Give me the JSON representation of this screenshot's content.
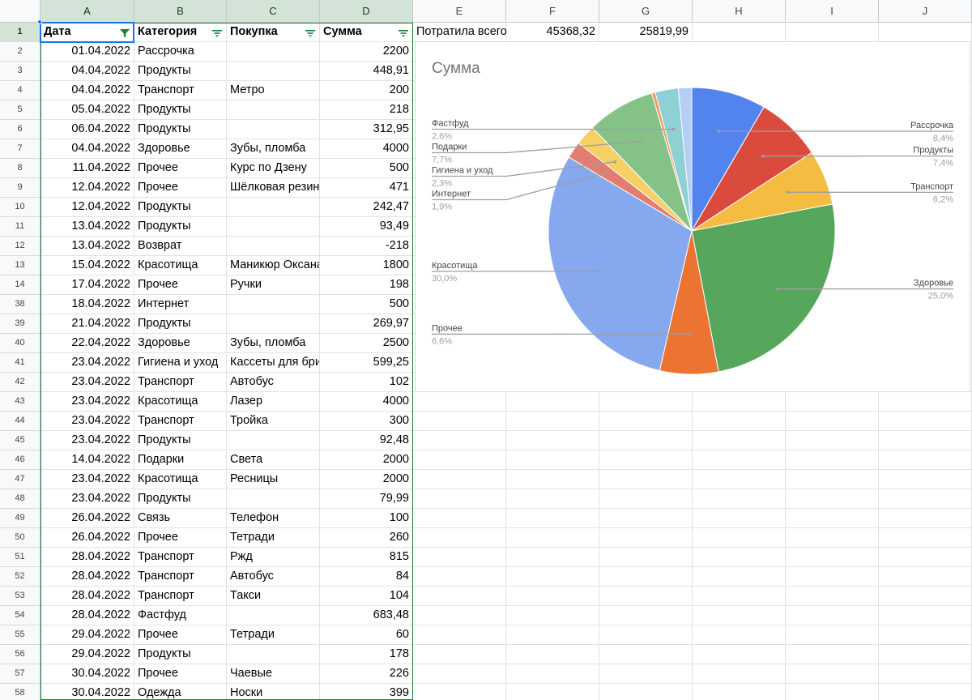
{
  "sheet": {
    "columns": [
      "A",
      "B",
      "C",
      "D",
      "E",
      "F",
      "G",
      "H",
      "I",
      "J"
    ],
    "header_row": {
      "num": "1",
      "date": "Дата",
      "category": "Категория",
      "purchase": "Покупка",
      "amount": "Сумма"
    },
    "summary": {
      "label": "Потратила всего",
      "value1": "45368,32",
      "value2": "25819,99"
    },
    "rows": [
      {
        "num": "2",
        "date": "01.04.2022",
        "category": "Рассрочка",
        "purchase": "",
        "amount": "2200"
      },
      {
        "num": "3",
        "date": "04.04.2022",
        "category": "Продукты",
        "purchase": "",
        "amount": "448,91"
      },
      {
        "num": "4",
        "date": "04.04.2022",
        "category": "Транспорт",
        "purchase": "Метро",
        "amount": "200"
      },
      {
        "num": "5",
        "date": "05.04.2022",
        "category": "Продукты",
        "purchase": "",
        "amount": "218"
      },
      {
        "num": "6",
        "date": "06.04.2022",
        "category": "Продукты",
        "purchase": "",
        "amount": "312,95"
      },
      {
        "num": "7",
        "date": "04.04.2022",
        "category": "Здоровье",
        "purchase": "Зубы, пломба",
        "amount": "4000"
      },
      {
        "num": "8",
        "date": "11.04.2022",
        "category": "Прочее",
        "purchase": "Курс по Дзену",
        "amount": "500"
      },
      {
        "num": "9",
        "date": "12.04.2022",
        "category": "Прочее",
        "purchase": "Шёлковая резин",
        "amount": "471"
      },
      {
        "num": "10",
        "date": "12.04.2022",
        "category": "Продукты",
        "purchase": "",
        "amount": "242,47"
      },
      {
        "num": "11",
        "date": "13.04.2022",
        "category": "Продукты",
        "purchase": "",
        "amount": "93,49"
      },
      {
        "num": "12",
        "date": "13.04.2022",
        "category": "Возврат",
        "purchase": "",
        "amount": "-218"
      },
      {
        "num": "13",
        "date": "15.04.2022",
        "category": "Красотища",
        "purchase": "Маникюр Оксана",
        "amount": "1800"
      },
      {
        "num": "14",
        "date": "17.04.2022",
        "category": "Прочее",
        "purchase": "Ручки",
        "amount": "198"
      },
      {
        "num": "38",
        "date": "18.04.2022",
        "category": "Интернет",
        "purchase": "",
        "amount": "500"
      },
      {
        "num": "39",
        "date": "21.04.2022",
        "category": "Продукты",
        "purchase": "",
        "amount": "269,97"
      },
      {
        "num": "40",
        "date": "22.04.2022",
        "category": "Здоровье",
        "purchase": "Зубы, пломба",
        "amount": "2500"
      },
      {
        "num": "41",
        "date": "23.04.2022",
        "category": "Гигиена и уход",
        "purchase": "Кассеты для бри",
        "amount": "599,25"
      },
      {
        "num": "42",
        "date": "23.04.2022",
        "category": "Транспорт",
        "purchase": "Автобус",
        "amount": "102"
      },
      {
        "num": "43",
        "date": "23.04.2022",
        "category": "Красотища",
        "purchase": "Лазер",
        "amount": "4000"
      },
      {
        "num": "44",
        "date": "23.04.2022",
        "category": "Транспорт",
        "purchase": "Тройка",
        "amount": "300"
      },
      {
        "num": "45",
        "date": "23.04.2022",
        "category": "Продукты",
        "purchase": "",
        "amount": "92,48"
      },
      {
        "num": "46",
        "date": "14.04.2022",
        "category": "Подарки",
        "purchase": "Света",
        "amount": "2000"
      },
      {
        "num": "47",
        "date": "23.04.2022",
        "category": "Красотища",
        "purchase": "Ресницы",
        "amount": "2000"
      },
      {
        "num": "48",
        "date": "23.04.2022",
        "category": "Продукты",
        "purchase": "",
        "amount": "79,99"
      },
      {
        "num": "49",
        "date": "26.04.2022",
        "category": "Связь",
        "purchase": "Телефон",
        "amount": "100"
      },
      {
        "num": "50",
        "date": "26.04.2022",
        "category": "Прочее",
        "purchase": "Тетради",
        "amount": "260"
      },
      {
        "num": "51",
        "date": "28.04.2022",
        "category": "Транспорт",
        "purchase": "Ржд",
        "amount": "815"
      },
      {
        "num": "52",
        "date": "28.04.2022",
        "category": "Транспорт",
        "purchase": "Автобус",
        "amount": "84"
      },
      {
        "num": "53",
        "date": "28.04.2022",
        "category": "Транспорт",
        "purchase": "Такси",
        "amount": "104"
      },
      {
        "num": "54",
        "date": "28.04.2022",
        "category": "Фастфуд",
        "purchase": "",
        "amount": "683,48"
      },
      {
        "num": "55",
        "date": "29.04.2022",
        "category": "Прочее",
        "purchase": "Тетради",
        "amount": "60"
      },
      {
        "num": "56",
        "date": "29.04.2022",
        "category": "Продукты",
        "purchase": "",
        "amount": "178"
      },
      {
        "num": "57",
        "date": "30.04.2022",
        "category": "Прочее",
        "purchase": "Чаевые",
        "amount": "226"
      },
      {
        "num": "58",
        "date": "30.04.2022",
        "category": "Одежда",
        "purchase": "Носки",
        "amount": "399"
      }
    ]
  },
  "colors": {
    "selection_green": "#188038",
    "active_cell_blue": "#1a73e8"
  },
  "chart_data": {
    "type": "pie",
    "title": "Сумма",
    "start_angle_deg": 0,
    "label_positions": {
      "Рассрочка": "right",
      "Продукты": "right",
      "Транспорт": "right",
      "Здоровье": "right",
      "Прочее": "left",
      "Красотища": "left",
      "Интернет": "left",
      "Гигиена и уход": "left",
      "Подарки": "left",
      "Фастфуд": "left"
    },
    "slices": [
      {
        "label": "Рассрочка",
        "pct_text": "8,4%",
        "value": 8.4,
        "color": "#5384ed",
        "labeled": true
      },
      {
        "label": "Продукты",
        "pct_text": "7,4%",
        "value": 7.4,
        "color": "#db4b3d",
        "labeled": true
      },
      {
        "label": "Транспорт",
        "pct_text": "6,2%",
        "value": 6.2,
        "color": "#f4bd42",
        "labeled": true
      },
      {
        "label": "Здоровье",
        "pct_text": "25,0%",
        "value": 25.0,
        "color": "#56a75c",
        "labeled": true
      },
      {
        "label": "Прочее",
        "pct_text": "6,6%",
        "value": 6.6,
        "color": "#ec7433",
        "labeled": true
      },
      {
        "label": "Красотища",
        "pct_text": "30,0%",
        "value": 30.0,
        "color": "#86a8ef",
        "labeled": true
      },
      {
        "label": "Интернет",
        "pct_text": "1,9%",
        "value": 1.9,
        "color": "#e37d6f",
        "labeled": true
      },
      {
        "label": "Гигиена и уход",
        "pct_text": "2,3%",
        "value": 2.3,
        "color": "#f6d065",
        "labeled": true
      },
      {
        "label": "Подарки",
        "pct_text": "7,7%",
        "value": 7.7,
        "color": "#84c288",
        "labeled": true
      },
      {
        "label": "",
        "pct_text": "",
        "value": 0.4,
        "color": "#f29d5f",
        "labeled": false
      },
      {
        "label": "Фастфуд",
        "pct_text": "2,6%",
        "value": 2.6,
        "color": "#8ed0d3",
        "labeled": true
      },
      {
        "label": "",
        "pct_text": "",
        "value": 1.5,
        "color": "#b6cdf6",
        "labeled": false
      }
    ]
  }
}
